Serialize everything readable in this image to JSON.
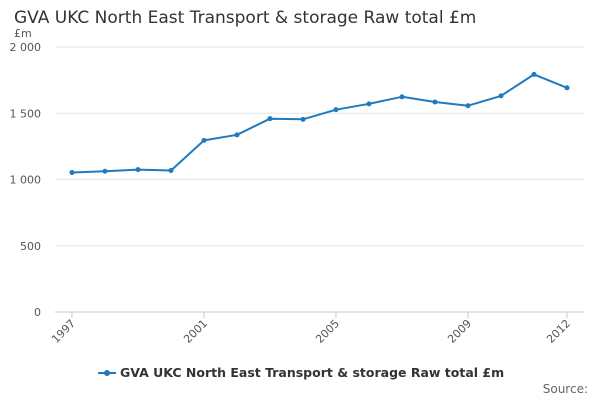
{
  "chart_data": {
    "type": "line",
    "title": "GVA UKC North East Transport & storage Raw total £m",
    "ylabel": "£m",
    "xlabel": "",
    "ylim": [
      0,
      2000
    ],
    "yticks": [
      0,
      500,
      1000,
      1500,
      2000
    ],
    "ytick_labels": [
      "0",
      "500",
      "1 000",
      "1 500",
      "2 000"
    ],
    "xtick_labels": [
      "1997",
      "2001",
      "2005",
      "2009",
      "2012"
    ],
    "x": [
      1997,
      1998,
      1999,
      2000,
      2001,
      2002,
      2003,
      2004,
      2005,
      2006,
      2007,
      2008,
      2009,
      2010,
      2011,
      2012
    ],
    "series": [
      {
        "name": "GVA UKC North East Transport & storage Raw total £m",
        "values": [
          1053,
          1062,
          1075,
          1068,
          1295,
          1337,
          1459,
          1454,
          1527,
          1571,
          1624,
          1585,
          1557,
          1631,
          1793,
          1692
        ]
      }
    ],
    "grid": "horizontal",
    "legend_position": "bottom",
    "series_color": "#1f7ac0",
    "source_label": "Source:"
  }
}
